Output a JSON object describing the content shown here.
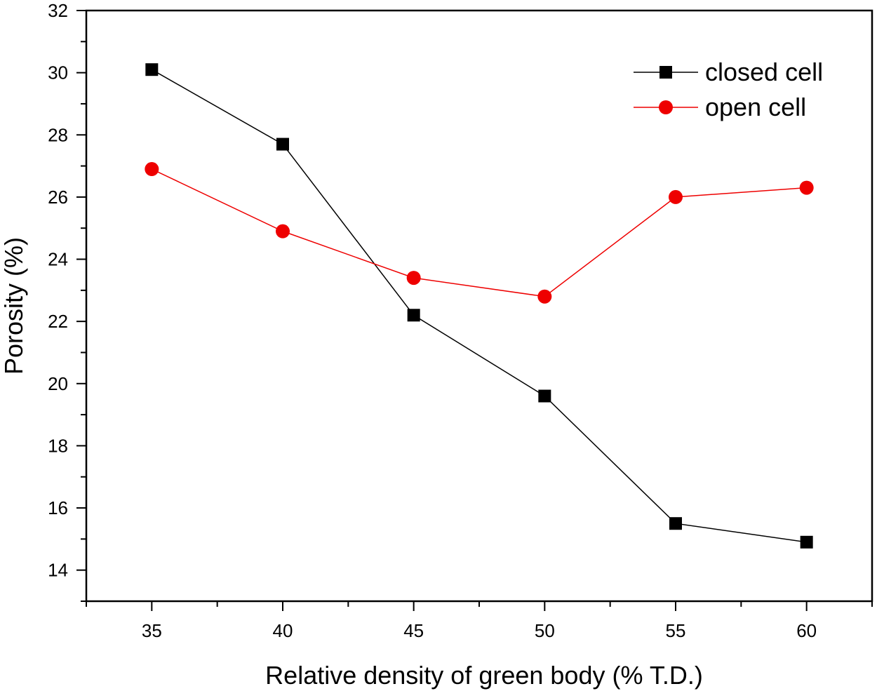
{
  "chart_data": {
    "type": "line",
    "title": "",
    "xlabel": "Relative density of green body (% T.D.)",
    "ylabel": "Porosity (%)",
    "x": [
      35,
      40,
      45,
      50,
      55,
      60
    ],
    "xlim": [
      32.5,
      62.5
    ],
    "ylim": [
      13,
      32
    ],
    "xticks": [
      35,
      40,
      45,
      50,
      55,
      60
    ],
    "yticks": [
      14,
      16,
      18,
      20,
      22,
      24,
      26,
      28,
      30,
      32
    ],
    "grid": false,
    "legend_position": "top-right",
    "series": [
      {
        "name": "closed cell",
        "marker": "square",
        "color": "#000000",
        "values": [
          30.1,
          27.7,
          22.2,
          19.6,
          15.5,
          14.9
        ]
      },
      {
        "name": "open cell",
        "marker": "circle",
        "color": "#ee0000",
        "values": [
          26.9,
          24.9,
          23.4,
          22.8,
          26.0,
          26.3
        ]
      }
    ]
  }
}
